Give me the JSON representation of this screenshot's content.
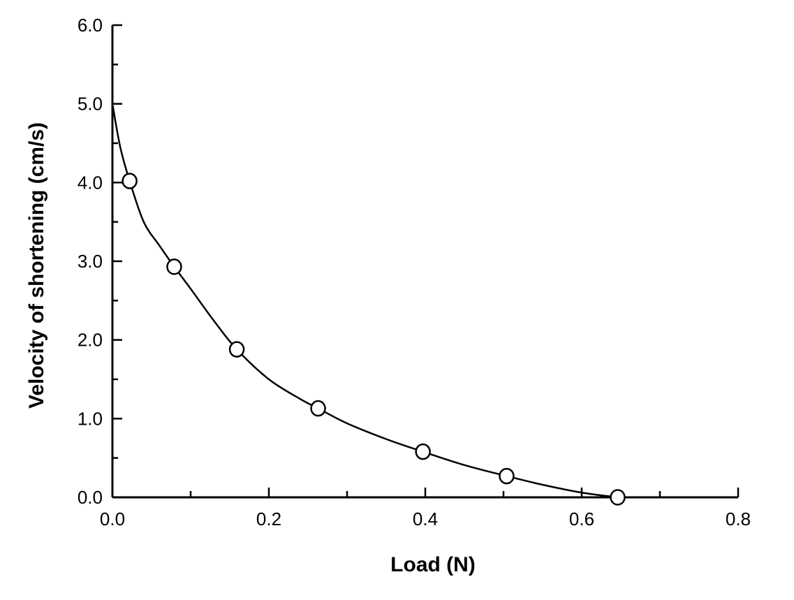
{
  "chart_data": {
    "type": "scatter",
    "title": "",
    "xlabel": "Load  (N)",
    "ylabel": "Velocity of shortening (cm/s)",
    "xlim": [
      0.0,
      0.8
    ],
    "ylim": [
      0.0,
      6.0
    ],
    "x_major_ticks": [
      0.0,
      0.2,
      0.4,
      0.6,
      0.8
    ],
    "x_tick_labels": [
      "0.0",
      "0.2",
      "0.4",
      "0.6",
      "0.8"
    ],
    "x_minor_step": 0.1,
    "y_major_ticks": [
      0.0,
      1.0,
      2.0,
      3.0,
      4.0,
      5.0,
      6.0
    ],
    "y_tick_labels": [
      "0.0",
      "1.0",
      "2.0",
      "3.0",
      "4.0",
      "5.0",
      "6.0"
    ],
    "y_minor_step": 0.5,
    "grid": false,
    "legend": "none",
    "series": [
      {
        "kind": "points",
        "marker": "open-circle",
        "x": [
          0.022,
          0.079,
          0.159,
          0.263,
          0.397,
          0.504,
          0.646
        ],
        "y": [
          4.02,
          2.93,
          1.88,
          1.13,
          0.58,
          0.27,
          0.0
        ]
      },
      {
        "kind": "fitted-curve",
        "x": [
          0.0,
          0.01,
          0.022,
          0.04,
          0.06,
          0.079,
          0.1,
          0.13,
          0.159,
          0.2,
          0.24,
          0.263,
          0.3,
          0.35,
          0.397,
          0.45,
          0.504,
          0.55,
          0.6,
          0.646
        ],
        "y": [
          5.0,
          4.45,
          4.02,
          3.5,
          3.2,
          2.93,
          2.65,
          2.24,
          1.88,
          1.5,
          1.25,
          1.13,
          0.94,
          0.74,
          0.58,
          0.41,
          0.27,
          0.16,
          0.06,
          0.0
        ]
      }
    ]
  }
}
